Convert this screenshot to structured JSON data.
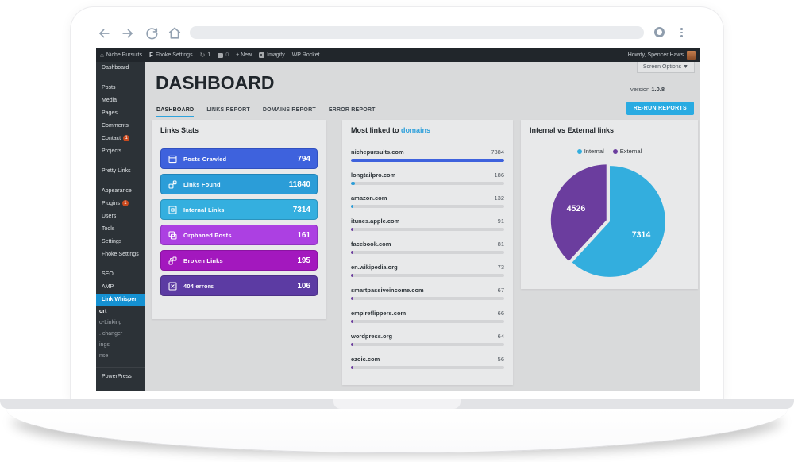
{
  "browser": {
    "address_value": ""
  },
  "admin_bar": {
    "site_name": "Niche Pursuits",
    "fhoke_logo": "F",
    "fhoke": "Fhoke Settings",
    "updates_count": "1",
    "comments_count": "0",
    "new_label": "+ New",
    "imagify": "Imagify",
    "wp_rocket": "WP Rocket",
    "howdy": "Howdy, Spencer Haws"
  },
  "sidebar": {
    "items": [
      {
        "label": "Dashboard"
      },
      {
        "label": "Posts",
        "gap": true
      },
      {
        "label": "Media"
      },
      {
        "label": "Pages"
      },
      {
        "label": "Comments"
      },
      {
        "label": "Contact",
        "badge": "1"
      },
      {
        "label": "Projects"
      },
      {
        "label": "Pretty Links",
        "gap": true
      },
      {
        "label": "Appearance",
        "gap": true
      },
      {
        "label": "Plugins",
        "badge": "1"
      },
      {
        "label": "Users"
      },
      {
        "label": "Tools"
      },
      {
        "label": "Settings"
      },
      {
        "label": "Fhoke Settings"
      },
      {
        "label": "SEO",
        "gap": true
      },
      {
        "label": "AMP"
      },
      {
        "label": "Link Whisper",
        "active": true
      },
      {
        "label": "ort",
        "sub": true,
        "bold": true
      },
      {
        "label": "o-Linking",
        "sub": true
      },
      {
        "label": ". changer",
        "sub": true
      },
      {
        "label": "ings",
        "sub": true
      },
      {
        "label": "nse",
        "sub": true
      },
      {
        "label": "PowerPress",
        "sep": true
      }
    ]
  },
  "page": {
    "title": "DASHBOARD",
    "version_label": "version",
    "version_value": "1.0.8",
    "screen_options": "Screen Options ▼",
    "rerun_button": "RE-RUN REPORTS",
    "tabs": [
      {
        "label": "DASHBOARD",
        "active": true
      },
      {
        "label": "LINKS REPORT",
        "active": false
      },
      {
        "label": "DOMAINS REPORT",
        "active": false
      },
      {
        "label": "ERROR REPORT",
        "active": false
      }
    ]
  },
  "links_stats": {
    "title": "Links Stats",
    "cards": [
      {
        "label": "Posts Crawled",
        "value": "794",
        "bg": "#3E62DD",
        "border": "#3050C0",
        "icon": "browser-window"
      },
      {
        "label": "Links Found",
        "value": "11840",
        "bg": "#2B9DD8",
        "border": "#2384B8",
        "icon": "external-link"
      },
      {
        "label": "Internal Links",
        "value": "7314",
        "bg": "#34AFDF",
        "border": "#2B93BD",
        "icon": "square-in-square"
      },
      {
        "label": "Orphaned Posts",
        "value": "161",
        "bg": "#AC40E2",
        "border": "#9134C0",
        "icon": "stacked-windows"
      },
      {
        "label": "Broken Links",
        "value": "195",
        "bg": "#A318BE",
        "border": "#8A14A1",
        "icon": "broken-link"
      },
      {
        "label": "404 errors",
        "value": "106",
        "bg": "#5C3BA3",
        "border": "#4C3087",
        "icon": "x-square"
      }
    ]
  },
  "domains_panel": {
    "title_prefix": "Most linked to ",
    "title_link": "domains",
    "items": [
      {
        "domain": "nichepursuits.com",
        "value": 7384,
        "color": "#3E62DD"
      },
      {
        "domain": "longtailpro.com",
        "value": 186,
        "color": "#2B9DD8"
      },
      {
        "domain": "amazon.com",
        "value": 132,
        "color": "#2B9DD8"
      },
      {
        "domain": "itunes.apple.com",
        "value": 91,
        "color": "#6B3D9E"
      },
      {
        "domain": "facebook.com",
        "value": 81,
        "color": "#6B3D9E"
      },
      {
        "domain": "en.wikipedia.org",
        "value": 73,
        "color": "#6B3D9E"
      },
      {
        "domain": "smartpassiveincome.com",
        "value": 67,
        "color": "#6B3D9E"
      },
      {
        "domain": "empireflippers.com",
        "value": 66,
        "color": "#6B3D9E"
      },
      {
        "domain": "wordpress.org",
        "value": 64,
        "color": "#6B3D9E"
      },
      {
        "domain": "ezoic.com",
        "value": 56,
        "color": "#6B3D9E"
      }
    ]
  },
  "pie_panel": {
    "title": "Internal vs External links",
    "legend": [
      {
        "label": "Internal",
        "color": "#33AEDE"
      },
      {
        "label": "External",
        "color": "#6B3D9E"
      }
    ],
    "internal_value": "7314",
    "external_value": "4526"
  },
  "chart_data": [
    {
      "type": "bar",
      "orientation": "horizontal",
      "title": "Most linked to domains",
      "categories": [
        "nichepursuits.com",
        "longtailpro.com",
        "amazon.com",
        "itunes.apple.com",
        "facebook.com",
        "en.wikipedia.org",
        "smartpassiveincome.com",
        "empireflippers.com",
        "wordpress.org",
        "ezoic.com"
      ],
      "values": [
        7384,
        186,
        132,
        91,
        81,
        73,
        67,
        66,
        64,
        56
      ],
      "bar_colors": [
        "#3E62DD",
        "#2B9DD8",
        "#2B9DD8",
        "#6B3D9E",
        "#6B3D9E",
        "#6B3D9E",
        "#6B3D9E",
        "#6B3D9E",
        "#6B3D9E",
        "#6B3D9E"
      ],
      "xlim": [
        0,
        7384
      ],
      "grid": false
    },
    {
      "type": "pie",
      "title": "Internal vs External links",
      "labels": [
        "Internal",
        "External"
      ],
      "values": [
        7314,
        4526
      ],
      "colors": [
        "#33AEDE",
        "#6B3D9E"
      ],
      "legend_position": "top",
      "data_labels": true
    }
  ]
}
